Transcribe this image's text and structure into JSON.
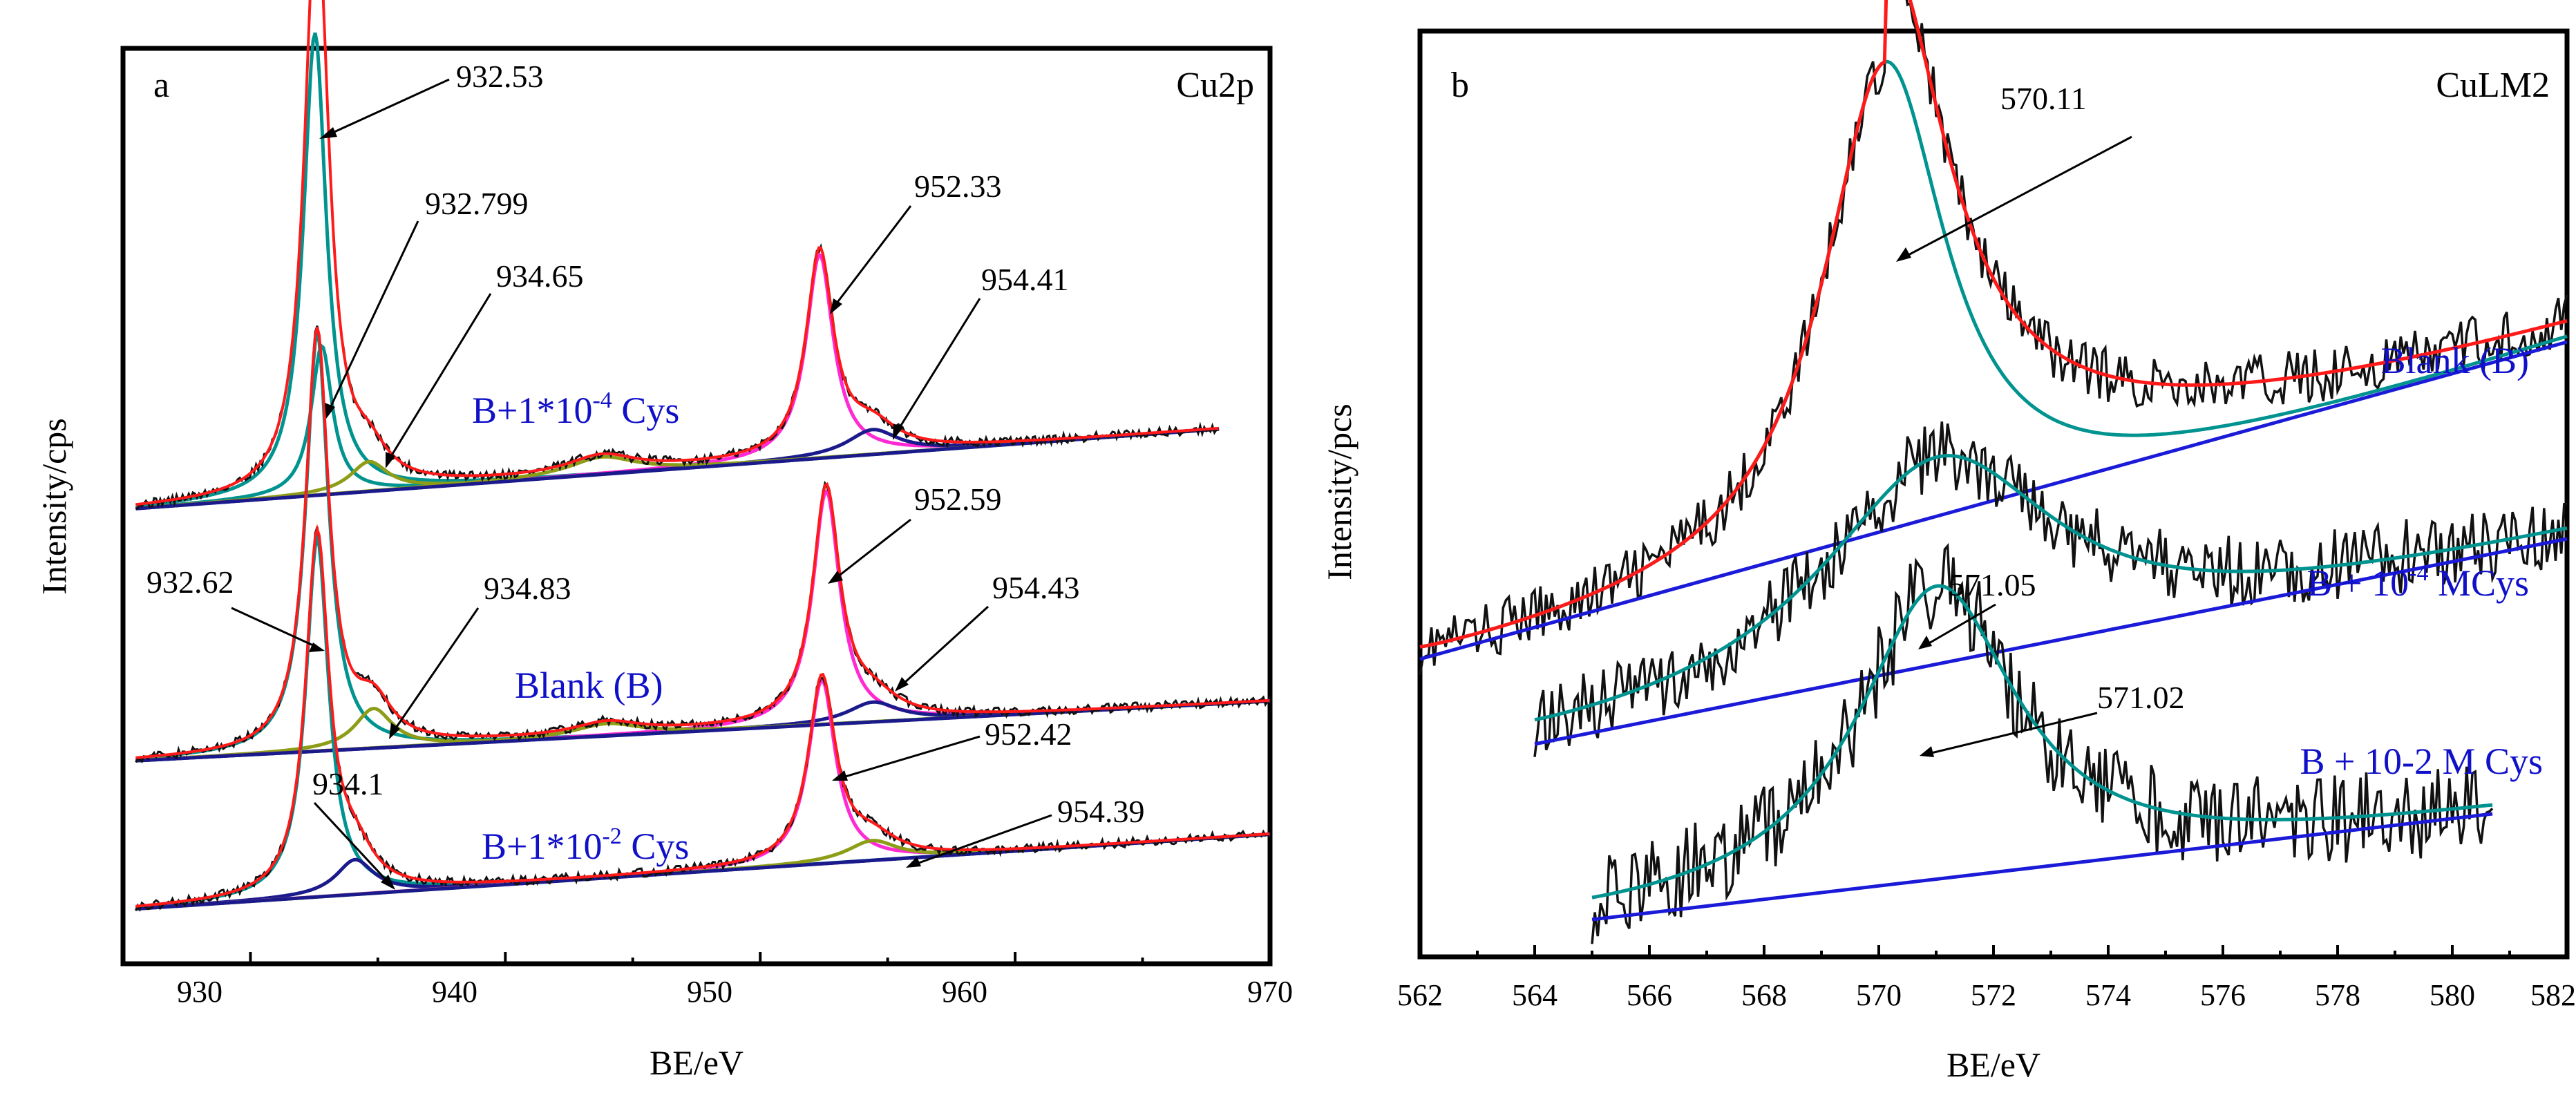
{
  "chart_data": [
    {
      "panel": "a",
      "type": "line",
      "title": "Cu2p",
      "xlabel": "BE/eV",
      "ylabel": "Intensity/cps",
      "xlim": [
        925,
        970
      ],
      "xticks": [
        930,
        940,
        950,
        960,
        970
      ],
      "series": [
        {
          "name": "B+1*10^-4 Cys",
          "label_main": "B+1*10",
          "label_exp": "-4",
          "label_tail": " Cys",
          "x_range": [
            925.5,
            968
          ],
          "base_start": 0.04,
          "base_end": 0.2,
          "peaks": [
            {
              "center": 932.53,
              "height": 0.93,
              "width": 0.55,
              "color": "#00938f",
              "label": "932.53"
            },
            {
              "center": 932.8,
              "height": 0.3,
              "width": 0.5,
              "color": "#00938f",
              "label": "932.799"
            },
            {
              "center": 934.65,
              "height": 0.06,
              "width": 0.9,
              "color": "#8d9d18",
              "label": "934.65"
            },
            {
              "center": 952.33,
              "height": 0.41,
              "width": 0.65,
              "color": "#ff2ad4",
              "label": "952.33"
            },
            {
              "center": 954.41,
              "height": 0.05,
              "width": 1.2,
              "color": "#1a1a8c",
              "label": "954.41"
            },
            {
              "center": 943.8,
              "height": 0.035,
              "width": 1.6,
              "color": "#8d9d18",
              "label": ""
            }
          ]
        },
        {
          "name": "Blank (B)",
          "label_main": "Blank (B)",
          "label_exp": "",
          "label_tail": "",
          "x_range": [
            925.5,
            970
          ],
          "base_start": 0.04,
          "base_end": 0.16,
          "peaks": [
            {
              "center": 932.62,
              "height": 0.84,
              "width": 0.55,
              "color": "#00938f",
              "label": "932.62"
            },
            {
              "center": 934.83,
              "height": 0.08,
              "width": 0.9,
              "color": "#8d9d18",
              "label": "934.83"
            },
            {
              "center": 952.59,
              "height": 0.47,
              "width": 0.65,
              "color": "#ff2ad4",
              "label": "952.59"
            },
            {
              "center": 954.43,
              "height": 0.04,
              "width": 1.2,
              "color": "#1a1a8c",
              "label": "954.43"
            },
            {
              "center": 944.0,
              "height": 0.025,
              "width": 1.6,
              "color": "#8d9d18",
              "label": ""
            }
          ]
        },
        {
          "name": "B+1*10^-2 Cys",
          "label_main": "B+1*10",
          "label_exp": "-2",
          "label_tail": " Cys",
          "x_range": [
            925.5,
            970
          ],
          "base_start": 0.02,
          "base_end": 0.17,
          "peaks": [
            {
              "center": 932.62,
              "height": 0.72,
              "width": 0.55,
              "color": "#00938f",
              "label": ""
            },
            {
              "center": 934.1,
              "height": 0.07,
              "width": 0.9,
              "color": "#1a1a8c",
              "label": "934.1"
            },
            {
              "center": 952.42,
              "height": 0.37,
              "width": 0.65,
              "color": "#ff2ad4",
              "label": "952.42"
            },
            {
              "center": 954.39,
              "height": 0.04,
              "width": 1.2,
              "color": "#8d9d18",
              "label": "954.39"
            }
          ]
        }
      ],
      "annotations": [
        "932.53",
        "932.799",
        "934.65",
        "952.33",
        "954.41",
        "932.62",
        "934.83",
        "952.59",
        "954.43",
        "934.1",
        "952.42",
        "954.39"
      ]
    },
    {
      "panel": "b",
      "type": "line",
      "title": "CuLM2",
      "xlabel": "BE/eV",
      "ylabel": "Intensity/pcs",
      "xlim": [
        562,
        582
      ],
      "xticks": [
        562,
        564,
        566,
        568,
        570,
        572,
        574,
        576,
        578,
        580,
        582
      ],
      "series": [
        {
          "name": "Blank (B)",
          "label_main": "Blank (B)",
          "x_range": [
            562,
            582
          ],
          "base_start": 0.04,
          "base_end": 0.55,
          "peak": {
            "center": 570.11,
            "height": 0.78,
            "width": 1.3,
            "label": "570.11"
          },
          "fit_color": "#ff1a1a"
        },
        {
          "name": "B + 10^-4 MCys",
          "label_main": "B + 10",
          "label_exp": "-4",
          "label_tail": " MCys",
          "x_range": [
            564,
            582
          ],
          "base_start": 0.02,
          "base_end": 0.35,
          "peak": {
            "center": 571.05,
            "height": 0.35,
            "width": 2.5,
            "label": "571.05"
          }
        },
        {
          "name": "B + 10-2 M Cys",
          "label_main": "B + 10-2 M Cys",
          "x_range": [
            565,
            580.7
          ],
          "base_start": 0.01,
          "base_end": 0.18,
          "peak": {
            "center": 571.02,
            "height": 0.48,
            "width": 1.7,
            "label": "571.02"
          }
        }
      ],
      "annotations": [
        "570.11",
        "571.05",
        "571.02"
      ]
    }
  ]
}
